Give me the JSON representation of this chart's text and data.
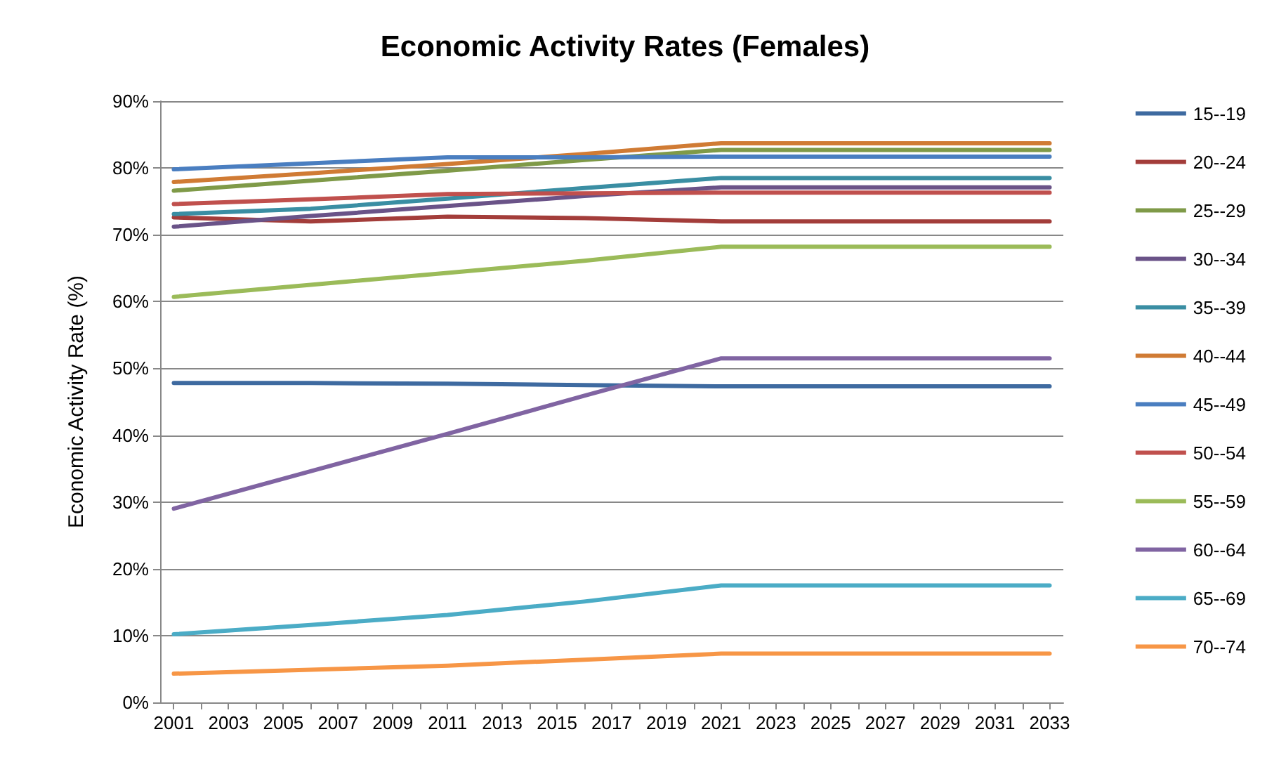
{
  "chart_data": {
    "type": "line",
    "title": "Economic Activity Rates (Females)",
    "ylabel": "Economic Activity Rate (%)",
    "x": [
      2001,
      2006,
      2011,
      2016,
      2021,
      2033
    ],
    "xlim": [
      2000.5,
      2033.5
    ],
    "xticks": [
      2001,
      {
        "value": 2002,
        "label": null
      },
      2003,
      {
        "value": 2004,
        "label": null
      },
      2005,
      {
        "value": 2006,
        "label": null
      },
      2007,
      {
        "value": 2008,
        "label": null
      },
      2009,
      {
        "value": 2010,
        "label": null
      },
      2011,
      {
        "value": 2012,
        "label": null
      },
      2013,
      {
        "value": 2014,
        "label": null
      },
      2015,
      {
        "value": 2016,
        "label": null
      },
      2017,
      {
        "value": 2018,
        "label": null
      },
      2019,
      {
        "value": 2020,
        "label": null
      },
      2021,
      {
        "value": 2022,
        "label": null
      },
      2023,
      {
        "value": 2024,
        "label": null
      },
      2025,
      {
        "value": 2026,
        "label": null
      },
      2027,
      {
        "value": 2028,
        "label": null
      },
      2029,
      {
        "value": 2030,
        "label": null
      },
      2031,
      {
        "value": 2032,
        "label": null
      },
      2033
    ],
    "ylim": [
      0,
      90
    ],
    "yticks": [
      {
        "value": 0,
        "label": "0%"
      },
      {
        "value": 10,
        "label": "10%"
      },
      {
        "value": 20,
        "label": "20%"
      },
      {
        "value": 30,
        "label": "30%"
      },
      {
        "value": 40,
        "label": "40%"
      },
      {
        "value": 50,
        "label": "50%"
      },
      {
        "value": 60,
        "label": "60%"
      },
      {
        "value": 70,
        "label": "70%"
      },
      {
        "value": 80,
        "label": "80%"
      },
      {
        "value": 90,
        "label": "90%"
      }
    ],
    "grid": "y",
    "legend": "right",
    "marker": "none",
    "line_style": "solid",
    "series": [
      {
        "name": "15--19",
        "color": "#3e6aa0",
        "values": [
          47.8,
          47.8,
          47.7,
          47.5,
          47.3,
          47.3
        ]
      },
      {
        "name": "20--24",
        "color": "#a33d3a",
        "values": [
          72.6,
          72.0,
          72.7,
          72.5,
          72.0,
          72.0
        ]
      },
      {
        "name": "25--29",
        "color": "#7f9a48",
        "values": [
          76.6,
          78.1,
          79.6,
          81.2,
          82.7,
          82.7
        ]
      },
      {
        "name": "30--34",
        "color": "#6a5388",
        "values": [
          71.2,
          72.8,
          74.3,
          75.8,
          77.1,
          77.1
        ]
      },
      {
        "name": "35--39",
        "color": "#3a8ea3",
        "values": [
          73.1,
          73.9,
          75.4,
          77.0,
          78.5,
          78.5
        ]
      },
      {
        "name": "40--44",
        "color": "#d07b34",
        "values": [
          77.9,
          79.2,
          80.6,
          82.1,
          83.7,
          83.7
        ]
      },
      {
        "name": "45--49",
        "color": "#4a7ec0",
        "values": [
          79.8,
          80.7,
          81.6,
          81.6,
          81.7,
          81.7
        ]
      },
      {
        "name": "50--54",
        "color": "#c0504d",
        "values": [
          74.6,
          75.3,
          76.1,
          76.2,
          76.3,
          76.3
        ]
      },
      {
        "name": "55--59",
        "color": "#9bbb59",
        "values": [
          60.7,
          62.5,
          64.3,
          66.1,
          68.2,
          68.2
        ]
      },
      {
        "name": "60--64",
        "color": "#8064a2",
        "values": [
          29.0,
          34.6,
          40.2,
          45.9,
          51.5,
          51.5
        ]
      },
      {
        "name": "65--69",
        "color": "#4bacc6",
        "values": [
          10.2,
          11.6,
          13.1,
          15.1,
          17.5,
          17.5
        ]
      },
      {
        "name": "70--74",
        "color": "#f79646",
        "values": [
          4.3,
          4.9,
          5.5,
          6.4,
          7.3,
          7.3
        ]
      }
    ]
  }
}
